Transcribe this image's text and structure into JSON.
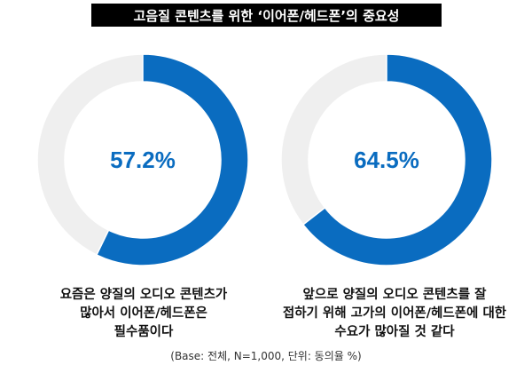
{
  "chart_data": {
    "type": "pie",
    "title": "고음질 콘텐츠를 위한 ‘이어폰/헤드폰’의 중요성",
    "charts": [
      {
        "value": 57.2,
        "label": "57.2%",
        "caption": [
          "요즘은 양질의 오디오 콘텐츠가",
          "많아서 이어폰/헤드폰은",
          "필수품이다"
        ]
      },
      {
        "value": 64.5,
        "label": "64.5%",
        "caption": [
          "앞으로 양질의 오디오 콘텐츠를 잘",
          "접하기 위해 고가의 이어폰/헤드폰에 대한",
          "수요가 많아질 것 같다"
        ]
      }
    ],
    "note": "(Base: 전체, N=1,000, 단위: 동의율 %)",
    "colors": {
      "value": "#0a6cc0",
      "rest": "#efefef"
    }
  }
}
